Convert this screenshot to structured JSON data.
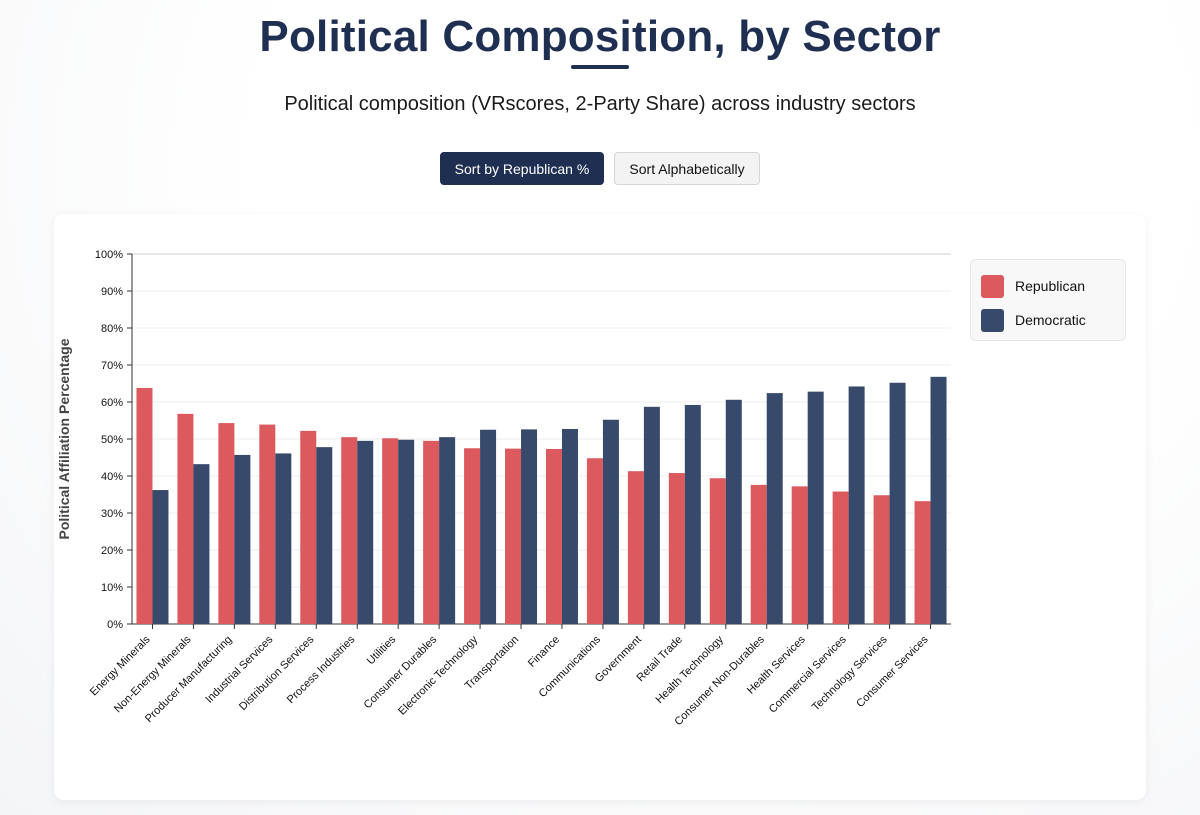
{
  "header": {
    "title": "Political Composition, by Sector",
    "subtitle": "Political composition (VRscores, 2-Party Share) across industry sectors"
  },
  "controls": {
    "sort_republican_label": "Sort by Republican %",
    "sort_alpha_label": "Sort Alphabetically"
  },
  "colors": {
    "republican": "#dc5a5e",
    "democratic": "#374a6b",
    "accent": "#1f2f52"
  },
  "chart_data": {
    "type": "bar",
    "title": "Political Composition, by Sector",
    "subtitle": "Political composition (VRscores, 2-Party Share) across industry sectors",
    "xlabel": "",
    "ylabel": "Political Affiliation Percentage",
    "ylim": [
      0,
      100
    ],
    "yticks": [
      "0%",
      "10%",
      "20%",
      "30%",
      "40%",
      "50%",
      "60%",
      "70%",
      "80%",
      "90%",
      "100%"
    ],
    "grid": true,
    "legend_position": "top-right",
    "categories": [
      "Energy Minerals",
      "Non-Energy Minerals",
      "Producer Manufacturing",
      "Industrial Services",
      "Distribution Services",
      "Process Industries",
      "Utilities",
      "Consumer Durables",
      "Electronic Technology",
      "Transportation",
      "Finance",
      "Communications",
      "Government",
      "Retail Trade",
      "Health Technology",
      "Consumer Non-Durables",
      "Health Services",
      "Commercial Services",
      "Technology Services",
      "Consumer Services"
    ],
    "series": [
      {
        "name": "Republican",
        "color": "#dc5a5e",
        "values": [
          63.8,
          56.8,
          54.3,
          53.9,
          52.2,
          50.5,
          50.2,
          49.5,
          47.5,
          47.4,
          47.3,
          44.8,
          41.3,
          40.8,
          39.4,
          37.6,
          37.2,
          35.8,
          34.8,
          33.2
        ]
      },
      {
        "name": "Democratic",
        "color": "#374a6b",
        "values": [
          36.2,
          43.2,
          45.7,
          46.1,
          47.8,
          49.5,
          49.8,
          50.5,
          52.5,
          52.6,
          52.7,
          55.2,
          58.7,
          59.2,
          60.6,
          62.4,
          62.8,
          64.2,
          65.2,
          66.8
        ]
      }
    ]
  }
}
